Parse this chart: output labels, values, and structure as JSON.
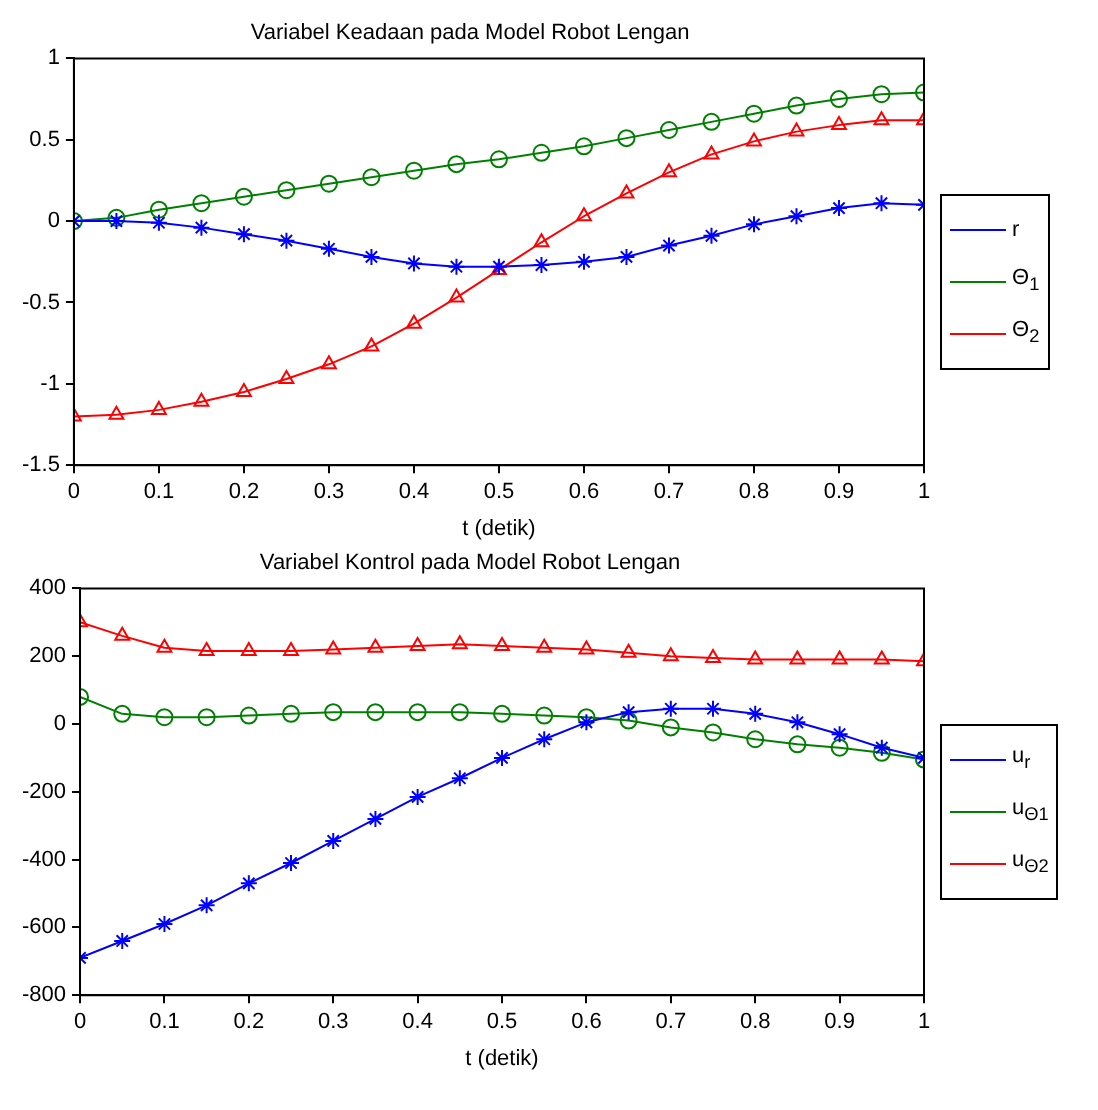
{
  "chart_data": [
    {
      "type": "line",
      "title": "Variabel Keadaan pada Model Robot Lengan",
      "xlabel": "t (detik)",
      "x": [
        0,
        0.05,
        0.1,
        0.15,
        0.2,
        0.25,
        0.3,
        0.35,
        0.4,
        0.45,
        0.5,
        0.55,
        0.6,
        0.65,
        0.7,
        0.75,
        0.8,
        0.85,
        0.9,
        0.95,
        1
      ],
      "xlim": [
        0,
        1
      ],
      "xticks": [
        0,
        0.1,
        0.2,
        0.3,
        0.4,
        0.5,
        0.6,
        0.7,
        0.8,
        0.9,
        1
      ],
      "ylim": [
        -1.5,
        1
      ],
      "yticks": [
        -1.5,
        -1,
        -0.5,
        0,
        0.5,
        1
      ],
      "grid": false,
      "legend": "right",
      "line_style": "solid",
      "series": [
        {
          "name": "r",
          "color": "#0000ff",
          "marker": "cross",
          "values": [
            0,
            0,
            -0.01,
            -0.04,
            -0.08,
            -0.12,
            -0.17,
            -0.22,
            -0.26,
            -0.28,
            -0.28,
            -0.27,
            -0.25,
            -0.22,
            -0.15,
            -0.09,
            -0.02,
            0.03,
            0.08,
            0.11,
            0.1
          ]
        },
        {
          "name": "Θ$_{1}$",
          "color": "#008000",
          "marker": "circle",
          "values": [
            0,
            0.02,
            0.07,
            0.11,
            0.15,
            0.19,
            0.23,
            0.27,
            0.31,
            0.35,
            0.38,
            0.42,
            0.46,
            0.51,
            0.56,
            0.61,
            0.66,
            0.71,
            0.75,
            0.78,
            0.79
          ]
        },
        {
          "name": "Θ$_{2}$",
          "color": "#ff0000",
          "marker": "triangle",
          "values": [
            -1.2,
            -1.19,
            -1.16,
            -1.11,
            -1.05,
            -0.97,
            -0.88,
            -0.77,
            -0.63,
            -0.47,
            -0.3,
            -0.13,
            0.03,
            0.17,
            0.3,
            0.41,
            0.49,
            0.55,
            0.59,
            0.62,
            0.62
          ]
        }
      ]
    },
    {
      "type": "line",
      "title": "Variabel Kontrol pada Model Robot Lengan",
      "xlabel": "t (detik)",
      "x": [
        0,
        0.05,
        0.1,
        0.15,
        0.2,
        0.25,
        0.3,
        0.35,
        0.4,
        0.45,
        0.5,
        0.55,
        0.6,
        0.65,
        0.7,
        0.75,
        0.8,
        0.85,
        0.9,
        0.95,
        1
      ],
      "xlim": [
        0,
        1
      ],
      "xticks": [
        0,
        0.1,
        0.2,
        0.3,
        0.4,
        0.5,
        0.6,
        0.7,
        0.8,
        0.9,
        1
      ],
      "ylim": [
        -800,
        400
      ],
      "yticks": [
        -800,
        -600,
        -400,
        -200,
        0,
        200,
        400
      ],
      "grid": false,
      "legend": "right",
      "line_style": "solid",
      "series": [
        {
          "name": "u$_{r}$",
          "color": "#0000ff",
          "marker": "cross",
          "values": [
            -690,
            -640,
            -590,
            -535,
            -470,
            -410,
            -345,
            -280,
            -215,
            -160,
            -100,
            -45,
            5,
            35,
            45,
            45,
            30,
            5,
            -30,
            -70,
            -100
          ]
        },
        {
          "name": "u$_{Θ1}$",
          "color": "#008000",
          "marker": "circle",
          "values": [
            80,
            30,
            20,
            20,
            25,
            30,
            35,
            35,
            35,
            35,
            30,
            25,
            20,
            10,
            -10,
            -25,
            -45,
            -60,
            -70,
            -85,
            -105
          ]
        },
        {
          "name": "u$_{Θ2}$",
          "color": "#ff0000",
          "marker": "triangle",
          "values": [
            300,
            260,
            225,
            215,
            215,
            215,
            220,
            225,
            230,
            235,
            230,
            225,
            220,
            210,
            200,
            195,
            190,
            190,
            190,
            190,
            185
          ]
        }
      ]
    }
  ]
}
